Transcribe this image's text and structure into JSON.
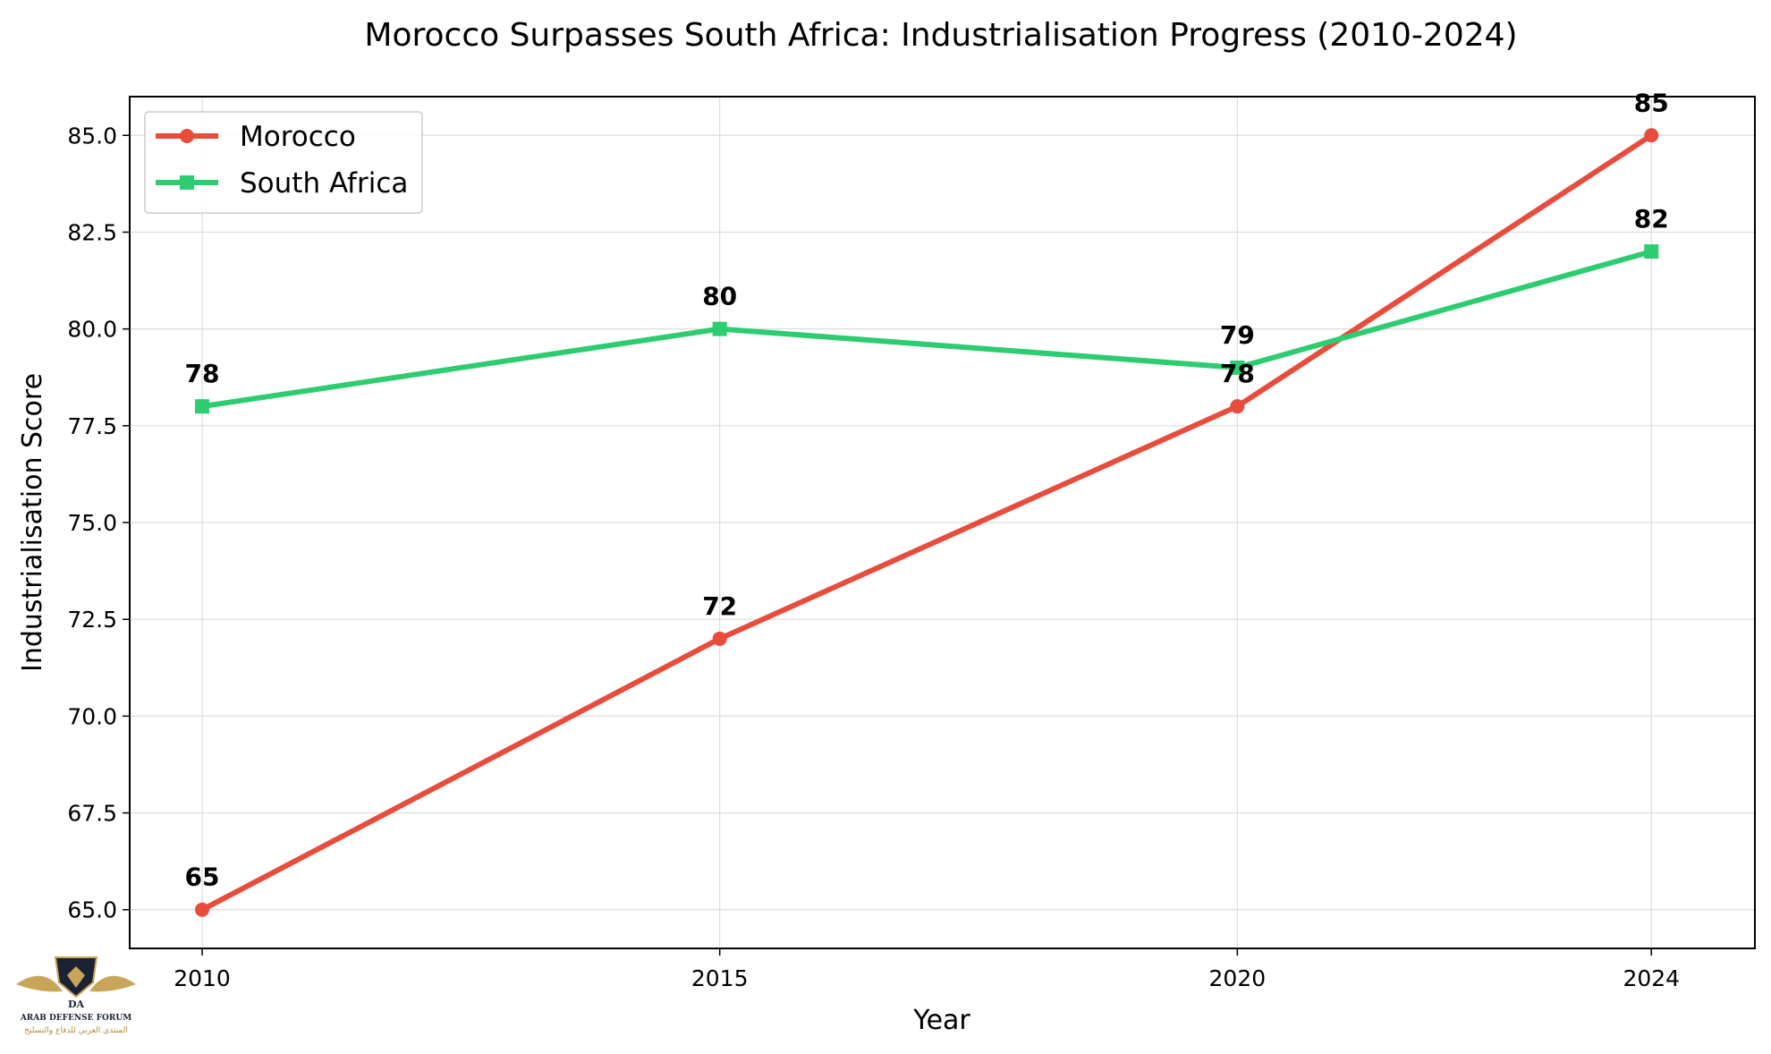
{
  "chart_data": {
    "type": "line",
    "title": "Morocco Surpasses South Africa: Industrialisation Progress (2010-2024)",
    "xlabel": "Year",
    "ylabel": "Industrialisation Score",
    "x": [
      2010,
      2015,
      2020,
      2024
    ],
    "x_tick_labels": [
      "2010",
      "2015",
      "2020",
      "2024"
    ],
    "xlim": [
      2009.3,
      2025.0
    ],
    "ylim": [
      64.0,
      86.0
    ],
    "y_ticks": [
      65.0,
      67.5,
      70.0,
      72.5,
      75.0,
      77.5,
      80.0,
      82.5,
      85.0
    ],
    "y_tick_labels": [
      "65.0",
      "67.5",
      "70.0",
      "72.5",
      "75.0",
      "77.5",
      "80.0",
      "82.5",
      "85.0"
    ],
    "grid": true,
    "legend_position": "top-left",
    "series": [
      {
        "name": "Morocco",
        "values": [
          65,
          72,
          78,
          85
        ],
        "labels": [
          "65",
          "72",
          "78",
          "85"
        ],
        "color": "#e74c3c",
        "marker": "circle"
      },
      {
        "name": "South Africa",
        "values": [
          78,
          80,
          79,
          82
        ],
        "labels": [
          "78",
          "80",
          "79",
          "82"
        ],
        "color": "#2ecc71",
        "marker": "square"
      }
    ]
  },
  "watermark": {
    "icon": "shield-eagle-logo-icon",
    "monogram": "DA",
    "caption_en": "ARAB DEFENSE FORUM",
    "caption_ar": "المنتدى العربي للدفاع والتسليح"
  }
}
